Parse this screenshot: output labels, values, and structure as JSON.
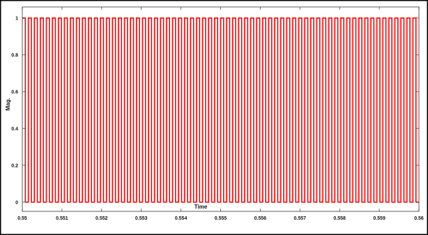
{
  "chart_data": {
    "type": "line",
    "title": "",
    "xlabel": "Time",
    "ylabel": "Mag.",
    "xlim": [
      0.55,
      0.56
    ],
    "ylim": [
      -0.05,
      1.06
    ],
    "x_ticks": [
      "0.55",
      "0.551",
      "0.552",
      "0.553",
      "0.554",
      "0.555",
      "0.556",
      "0.557",
      "0.558",
      "0.559",
      "0.56"
    ],
    "y_ticks": [
      "0",
      "0.2",
      "0.4",
      "0.6",
      "0.8",
      "1"
    ],
    "grid": false,
    "legend": "none",
    "series": [
      {
        "signal": "square-wave",
        "low": 0,
        "high": 1,
        "start": 0.55,
        "end": 0.56,
        "cycles": 66,
        "duty_cycle": 0.5,
        "initial_level": 1
      }
    ],
    "colors": {
      "line": "#ff0000",
      "frame": "#000000",
      "axis": "#333333",
      "background": "#ffffff"
    }
  }
}
